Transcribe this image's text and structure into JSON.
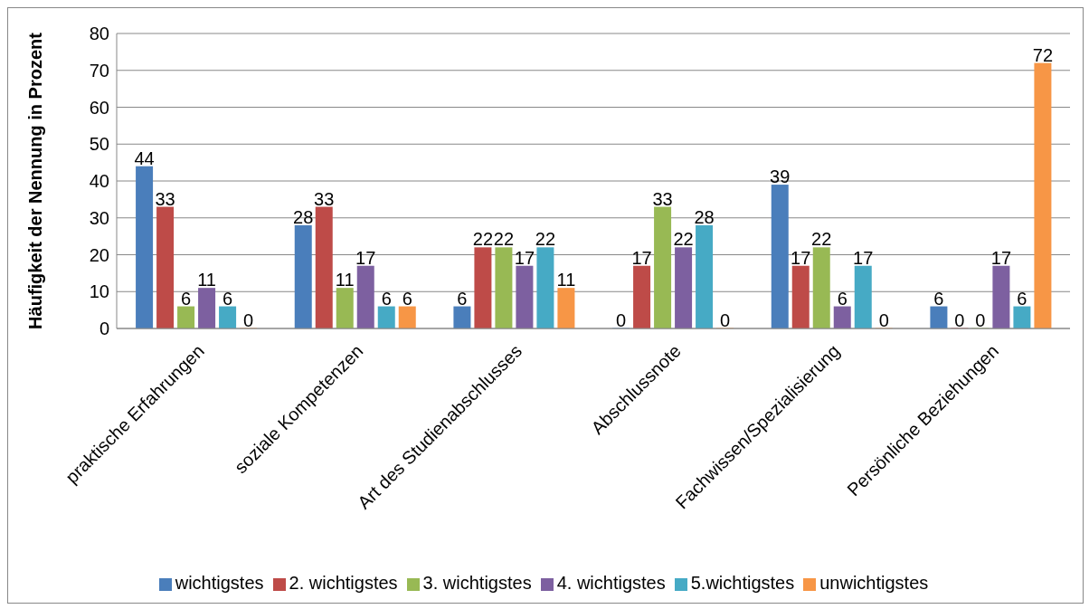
{
  "chart_data": {
    "type": "bar",
    "ylabel": "Häufigkeit der Nennung in Prozent",
    "categories": [
      "praktische Erfahrungen",
      "soziale Kompetenzen",
      "Art des Studienabschlusses",
      "Abschlussnote",
      "Fachwissen/Spezialisierung",
      "Persönliche Beziehungen"
    ],
    "series": [
      {
        "name": "wichtigstes",
        "color": "#4a7ebb",
        "values": [
          44,
          28,
          6,
          0,
          39,
          6
        ]
      },
      {
        "name": "2. wichtigstes",
        "color": "#be4b48",
        "values": [
          33,
          33,
          22,
          17,
          17,
          0
        ]
      },
      {
        "name": "3. wichtigstes",
        "color": "#98b954",
        "values": [
          6,
          11,
          22,
          33,
          22,
          0
        ]
      },
      {
        "name": "4. wichtigstes",
        "color": "#7d60a0",
        "values": [
          11,
          17,
          17,
          22,
          6,
          17
        ]
      },
      {
        "name": "5.wichtigstes",
        "color": "#46aac5",
        "values": [
          6,
          6,
          22,
          28,
          17,
          6
        ]
      },
      {
        "name": "unwichtigstes",
        "color": "#f79646",
        "values": [
          0,
          6,
          11,
          0,
          0,
          72
        ]
      }
    ],
    "ylim": [
      0,
      80
    ],
    "yticks": [
      0,
      10,
      20,
      30,
      40,
      50,
      60,
      70,
      80
    ],
    "grid": "y",
    "legend": "bottom",
    "data_labels": true
  }
}
